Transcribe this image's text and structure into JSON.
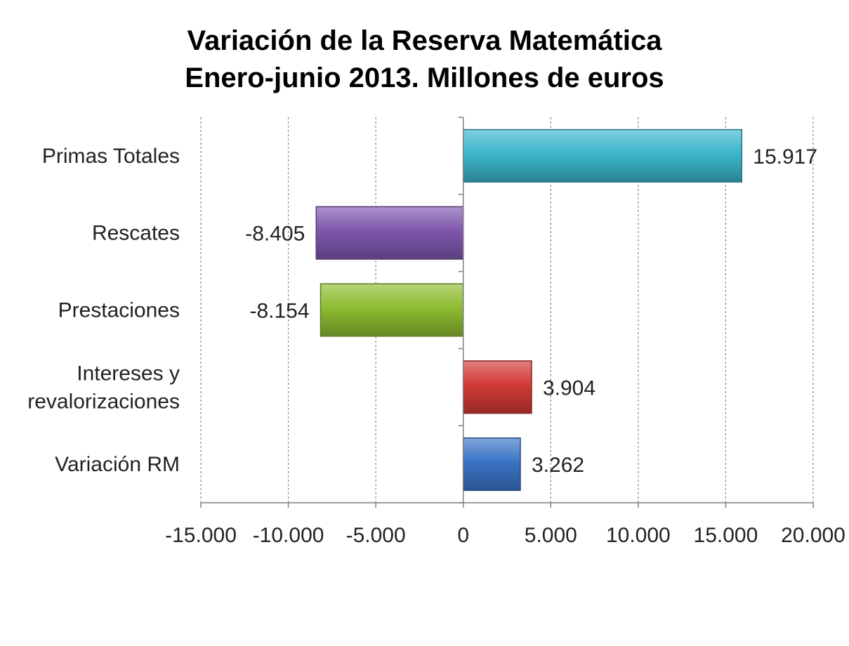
{
  "chart_data": {
    "type": "bar",
    "orientation": "horizontal",
    "title": [
      "Variación de la Reserva Matemática",
      "Enero-junio 2013. Millones de euros"
    ],
    "categories": [
      [
        "Primas Totales"
      ],
      [
        "Rescates"
      ],
      [
        "Prestaciones"
      ],
      [
        "Intereses y",
        "revalorizaciones"
      ],
      [
        "Variación RM"
      ]
    ],
    "values": [
      15917,
      -8405,
      -8154,
      3904,
      3262
    ],
    "value_labels": [
      "15.917",
      "-8.405",
      "-8.154",
      "3.904",
      "3.262"
    ],
    "colors": [
      "#3cb6cc",
      "#7f57ae",
      "#8ebd32",
      "#d23a36",
      "#3a74c6"
    ],
    "xlim": [
      -15000,
      20000
    ],
    "ticks": [
      -15000,
      -10000,
      -5000,
      0,
      5000,
      10000,
      15000,
      20000
    ],
    "tick_labels": [
      "-15.000",
      "-10.000",
      "-5.000",
      "0",
      "5.000",
      "10.000",
      "15.000",
      "20.000"
    ],
    "grid": "vertical-dashed",
    "legend": "none"
  }
}
